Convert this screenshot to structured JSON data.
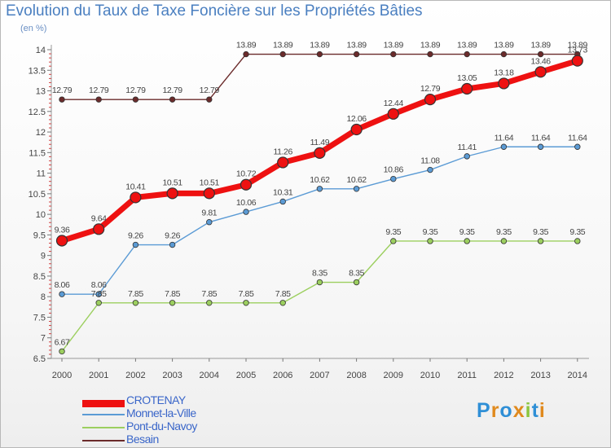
{
  "title": "Evolution du Taux de Taxe Foncière sur les Propriétés Bâties",
  "unit_label": "(en %)",
  "brand": "Proxiti",
  "chart_data": {
    "type": "line",
    "categories": [
      "2000",
      "2001",
      "2002",
      "2003",
      "2004",
      "2005",
      "2006",
      "2007",
      "2008",
      "2009",
      "2010",
      "2011",
      "2012",
      "2013",
      "2014"
    ],
    "ylim": [
      6.5,
      14
    ],
    "yticks": [
      "6.5",
      "7",
      "7.5",
      "8",
      "8.5",
      "9",
      "9.5",
      "10",
      "10.5",
      "11",
      "11.5",
      "12",
      "12.5",
      "13",
      "13.5",
      "14"
    ],
    "grid": false,
    "legend": "bottom-left",
    "series": [
      {
        "name": "Besain",
        "color": "#6b2b2b",
        "values": [
          12.79,
          12.79,
          12.79,
          12.79,
          12.79,
          13.89,
          13.89,
          13.89,
          13.89,
          13.89,
          13.89,
          13.89,
          13.89,
          13.89,
          13.89
        ],
        "labels": [
          "12.79",
          "12.79",
          "12.79",
          "12.79",
          "12.79",
          "13.89",
          "13.89",
          "13.89",
          "13.89",
          "13.89",
          "13.89",
          "13.89",
          "13.89",
          "13.89",
          "13.89"
        ]
      },
      {
        "name": "Monnet-la-Ville",
        "color": "#5b9bd5",
        "values": [
          8.06,
          8.06,
          9.26,
          9.26,
          9.81,
          10.06,
          10.31,
          10.62,
          10.62,
          10.86,
          11.08,
          11.41,
          11.64,
          11.64,
          11.64
        ],
        "labels": [
          "8.06",
          "8.06",
          "9.26",
          "9.26",
          "9.81",
          "10.06",
          "10.31",
          "10.62",
          "10.62",
          "10.86",
          "11.08",
          "11.41",
          "11.64",
          "11.64",
          "11.64"
        ]
      },
      {
        "name": "Pont-du-Navoy",
        "color": "#9ccf5f",
        "values": [
          6.67,
          7.85,
          7.85,
          7.85,
          7.85,
          7.85,
          7.85,
          8.35,
          8.35,
          9.35,
          9.35,
          9.35,
          9.35,
          9.35,
          9.35
        ],
        "labels": [
          "6.67",
          "7.85",
          "7.85",
          "7.85",
          "7.85",
          "7.85",
          "7.85",
          "8.35",
          "8.35",
          "9.35",
          "9.35",
          "9.35",
          "9.35",
          "9.35",
          "9.35"
        ]
      },
      {
        "name": "CROTENAY",
        "color": "#ee1111",
        "values": [
          9.36,
          9.64,
          10.41,
          10.51,
          10.51,
          10.72,
          11.26,
          11.49,
          12.06,
          12.44,
          12.79,
          13.05,
          13.18,
          13.46,
          13.73
        ],
        "labels": [
          "9.36",
          "9.64",
          "10.41",
          "10.51",
          "10.51",
          "10.72",
          "11.26",
          "11.49",
          "12.06",
          "12.44",
          "12.79",
          "13.05",
          "13.18",
          "13.46",
          "13.73"
        ]
      }
    ],
    "legend_order": [
      "CROTENAY",
      "Monnet-la-Ville",
      "Pont-du-Navoy",
      "Besain"
    ]
  }
}
